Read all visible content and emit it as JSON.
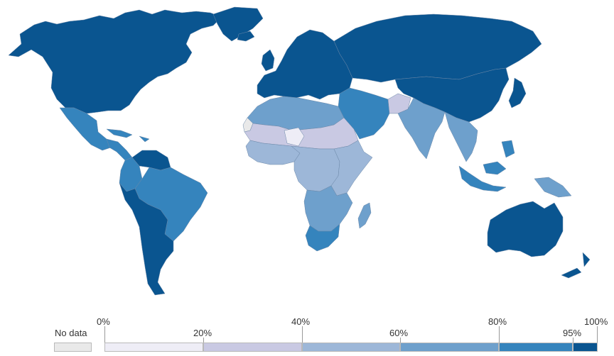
{
  "colors": {
    "ocean": "#ffffff",
    "no_data": "#e9e9e9",
    "bin_0_20": "#eeedf6",
    "bin_20_40": "#c9c9e3",
    "bin_40_60": "#9db7d8",
    "bin_60_80": "#6ea0cc",
    "bin_80_95": "#3584bd",
    "bin_95_100": "#0a5590",
    "border": "#8a9bb8"
  },
  "legend": {
    "no_data_label": "No data",
    "ticks": [
      "0%",
      "20%",
      "40%",
      "60%",
      "80%",
      "95%",
      "100%"
    ]
  },
  "regions": [
    {
      "name": "north-america",
      "bin": "bin_95_100"
    },
    {
      "name": "greenland",
      "bin": "bin_95_100"
    },
    {
      "name": "mexico",
      "bin": "bin_80_95"
    },
    {
      "name": "central-america",
      "bin": "bin_80_95"
    },
    {
      "name": "caribbean",
      "bin": "bin_80_95"
    },
    {
      "name": "venezuela",
      "bin": "bin_95_100"
    },
    {
      "name": "colombia",
      "bin": "bin_80_95"
    },
    {
      "name": "brazil",
      "bin": "bin_80_95"
    },
    {
      "name": "southern-cone",
      "bin": "bin_95_100"
    },
    {
      "name": "europe",
      "bin": "bin_95_100"
    },
    {
      "name": "iceland",
      "bin": "bin_95_100"
    },
    {
      "name": "uk-ireland",
      "bin": "bin_95_100"
    },
    {
      "name": "russia-central-asia",
      "bin": "bin_95_100"
    },
    {
      "name": "china-east-asia",
      "bin": "bin_95_100"
    },
    {
      "name": "japan",
      "bin": "bin_95_100"
    },
    {
      "name": "north-africa",
      "bin": "bin_60_80"
    },
    {
      "name": "sahel",
      "bin": "bin_20_40"
    },
    {
      "name": "sahel-dark",
      "bin": "bin_0_20"
    },
    {
      "name": "west-africa",
      "bin": "bin_40_60"
    },
    {
      "name": "central-africa",
      "bin": "bin_40_60"
    },
    {
      "name": "east-africa",
      "bin": "bin_40_60"
    },
    {
      "name": "southern-africa",
      "bin": "bin_60_80"
    },
    {
      "name": "south-africa",
      "bin": "bin_80_95"
    },
    {
      "name": "madagascar",
      "bin": "bin_60_80"
    },
    {
      "name": "middle-east",
      "bin": "bin_80_95"
    },
    {
      "name": "afghanistan",
      "bin": "bin_20_40"
    },
    {
      "name": "south-asia",
      "bin": "bin_60_80"
    },
    {
      "name": "southeast-asia",
      "bin": "bin_60_80"
    },
    {
      "name": "maritime-se-asia",
      "bin": "bin_80_95"
    },
    {
      "name": "new-guinea",
      "bin": "bin_60_80"
    },
    {
      "name": "australia",
      "bin": "bin_95_100"
    },
    {
      "name": "new-zealand",
      "bin": "bin_95_100"
    },
    {
      "name": "western-sahara",
      "bin": "no_data"
    }
  ]
}
